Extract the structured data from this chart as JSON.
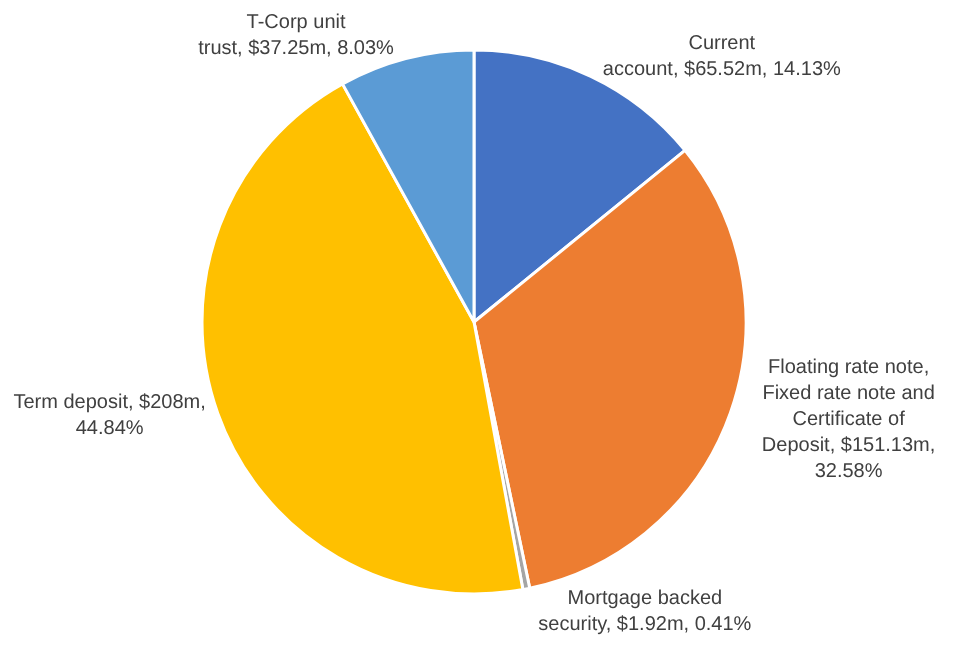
{
  "chart_data": {
    "type": "pie",
    "categories": [
      "Current account",
      "Floating rate note, Fixed rate note and Certificate of Deposit",
      "Mortgage backed security",
      "Term deposit",
      "T-Corp unit trust"
    ],
    "values": [
      14.13,
      32.58,
      0.41,
      44.84,
      8.03
    ],
    "value_labels": [
      "$65.52m, 14.13%",
      "$151.13m, 32.58%",
      "$1.92m, 0.41%",
      "$208m, 44.84%",
      "$37.25m, 8.03%"
    ],
    "colors": [
      "#4472c4",
      "#ed7d31",
      "#a5a5a5",
      "#ffc000",
      "#5b9bd5"
    ],
    "legend": false
  }
}
